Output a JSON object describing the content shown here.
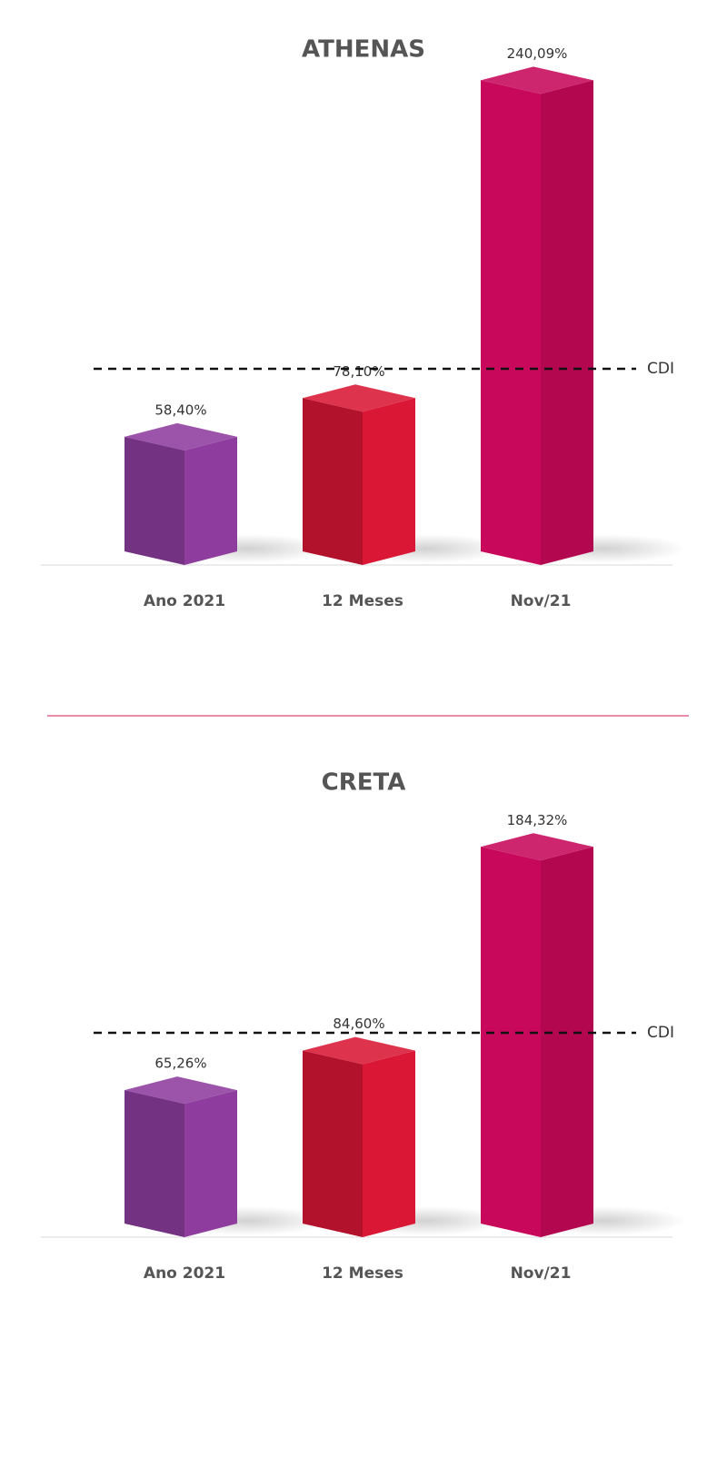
{
  "chart_data": [
    {
      "type": "bar",
      "title": "ATHENAS",
      "categories": [
        "Ano 2021",
        "12 Meses",
        "Nov/21"
      ],
      "values": [
        58.4,
        78.1,
        240.09
      ],
      "value_labels": [
        "58,40%",
        "78,10%",
        "240,09%"
      ],
      "colors": [
        "#8e3d9f",
        "#da1735",
        "#c8085a"
      ],
      "reference": {
        "label": "CDI",
        "value": 100
      },
      "ylim": [
        0,
        250
      ]
    },
    {
      "type": "bar",
      "title": "CRETA",
      "categories": [
        "Ano 2021",
        "12 Meses",
        "Nov/21"
      ],
      "values": [
        65.26,
        84.6,
        184.32
      ],
      "value_labels": [
        "65,26%",
        "84,60%",
        "184,32%"
      ],
      "colors": [
        "#8e3d9f",
        "#da1735",
        "#c8085a"
      ],
      "reference": {
        "label": "CDI",
        "value": 100
      },
      "ylim": [
        0,
        200
      ]
    }
  ]
}
